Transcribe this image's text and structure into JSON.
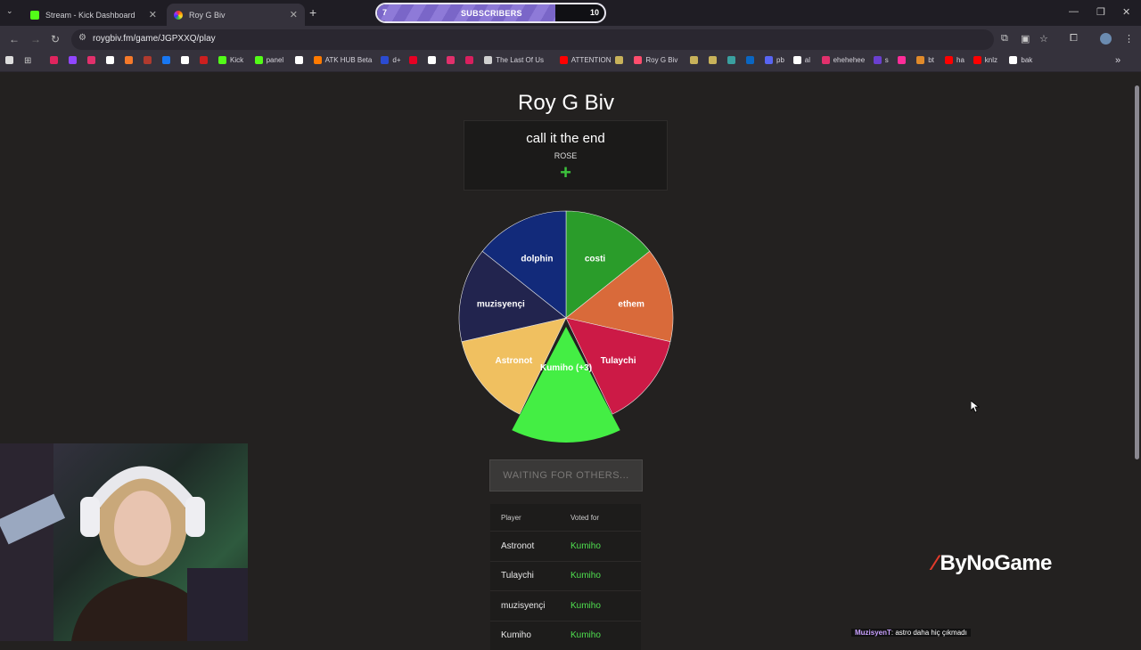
{
  "browser": {
    "tabs": [
      {
        "title": "Stream - Kick Dashboard",
        "favicon_color": "#53fc18",
        "active": false
      },
      {
        "title": "Roy G Biv",
        "favicon_color": "#ff4d6d",
        "active": true
      }
    ],
    "url": "roygbiv.fm/game/JGPXXQ/play",
    "bookmarks": [
      {
        "label": "",
        "color": "#e0245e"
      },
      {
        "label": "",
        "color": "#9146ff"
      },
      {
        "label": "",
        "color": "#e1306c"
      },
      {
        "label": "",
        "color": "#ffffff"
      },
      {
        "label": "",
        "color": "#f5792a"
      },
      {
        "label": "",
        "color": "#b03a2e"
      },
      {
        "label": "",
        "color": "#1877f2"
      },
      {
        "label": "",
        "color": "#ffffff"
      },
      {
        "label": "",
        "color": "#cc1f1f"
      },
      {
        "label": "Kick",
        "color": "#53fc18"
      },
      {
        "label": "panel",
        "color": "#53fc18"
      },
      {
        "label": "",
        "color": "#ffffff"
      },
      {
        "label": "ATK HUB Beta",
        "color": "#ff7a00"
      },
      {
        "label": "d+",
        "color": "#2b4bd1"
      },
      {
        "label": "",
        "color": "#e60023"
      },
      {
        "label": "",
        "color": "#ffffff"
      },
      {
        "label": "",
        "color": "#e1306c"
      },
      {
        "label": "",
        "color": "#d91f5e"
      },
      {
        "label": "The Last Of Us",
        "color": "#d0d0d0"
      },
      {
        "label": "ATTENTION",
        "color": "#ff0000"
      },
      {
        "label": "",
        "color": "#c8b25a"
      },
      {
        "label": "Roy G Biv",
        "color": "#ff4d6d"
      },
      {
        "label": "",
        "color": "#c8b25a"
      },
      {
        "label": "",
        "color": "#c8b25a"
      },
      {
        "label": "",
        "color": "#3aa0a0"
      },
      {
        "label": "",
        "color": "#0a66c2"
      },
      {
        "label": "pb",
        "color": "#5865f2"
      },
      {
        "label": "al",
        "color": "#ffffff"
      },
      {
        "label": "ehehehee",
        "color": "#e1306c"
      },
      {
        "label": "s",
        "color": "#6a3fd0"
      },
      {
        "label": "",
        "color": "#ff2d9a"
      },
      {
        "label": "bt",
        "color": "#e08a2a"
      },
      {
        "label": "ha",
        "color": "#ff0000"
      },
      {
        "label": "knlz",
        "color": "#ff0000"
      },
      {
        "label": "bak",
        "color": "#ffffff"
      }
    ]
  },
  "overlay": {
    "subscribers_label": "SUBSCRIBERS",
    "subscribers_current": "7",
    "subscribers_goal": "10",
    "subscribers_progress": 0.7,
    "logo_text": "ByNoGame",
    "chat_user": "MuzisyenT",
    "chat_message": ": astro daha hiç çıkmadı"
  },
  "game": {
    "title": "Roy G Biv",
    "prompt": "call it the end",
    "prompt_author": "ROSE",
    "plus_symbol": "+",
    "wheel_segments": [
      {
        "name": "costi",
        "color": "#2a9c2a"
      },
      {
        "name": "ethem",
        "color": "#d96a3a"
      },
      {
        "name": "Tulaychi",
        "color": "#cc1a46"
      },
      {
        "name": "Kumiho (+3)",
        "color": "#44ee44",
        "highlighted": true
      },
      {
        "name": "Astronot",
        "color": "#f0c060"
      },
      {
        "name": "muzisyençi",
        "color": "#22244e"
      },
      {
        "name": "dolphin",
        "color": "#122a7a"
      }
    ],
    "wait_button": "WAITING FOR OTHERS...",
    "votes_header": {
      "player": "Player",
      "voted_for": "Voted for"
    },
    "votes": [
      {
        "player": "Astronot",
        "voted_for": "Kumiho"
      },
      {
        "player": "Tulaychi",
        "voted_for": "Kumiho"
      },
      {
        "player": "muzisyençi",
        "voted_for": "Kumiho"
      },
      {
        "player": "Kumiho",
        "voted_for": "Kumiho"
      }
    ]
  }
}
